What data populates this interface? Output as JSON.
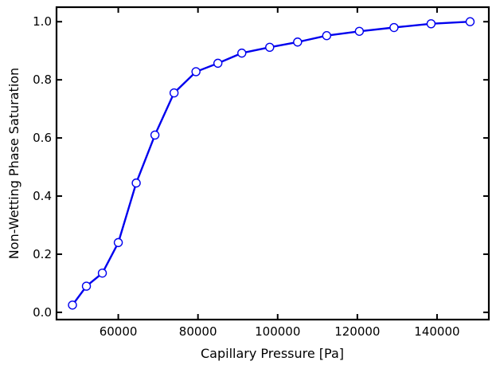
{
  "chart_data": {
    "type": "line",
    "title": "",
    "xlabel": "Capillary Pressure [Pa]",
    "ylabel": "Non-Wetting Phase Saturation",
    "xlim": [
      44500,
      153000
    ],
    "ylim": [
      -0.025,
      1.05
    ],
    "xticks": [
      60000,
      80000,
      100000,
      120000,
      140000
    ],
    "yticks": [
      0.0,
      0.2,
      0.4,
      0.6,
      0.8,
      1.0
    ],
    "xtick_labels": [
      "60000",
      "80000",
      "100000",
      "120000",
      "140000"
    ],
    "ytick_labels": [
      "0.0",
      "0.2",
      "0.4",
      "0.6",
      "0.8",
      "1.0"
    ],
    "grid": false,
    "series": [
      {
        "color": "#0000ee",
        "marker": "circle-open",
        "x": [
          48500,
          52000,
          56000,
          60000,
          64500,
          69200,
          74000,
          79500,
          85000,
          91000,
          98000,
          105000,
          112300,
          120500,
          129200,
          138500,
          148300
        ],
        "y": [
          0.025,
          0.09,
          0.135,
          0.24,
          0.445,
          0.61,
          0.755,
          0.828,
          0.857,
          0.892,
          0.912,
          0.93,
          0.952,
          0.967,
          0.98,
          0.993,
          1.0
        ]
      }
    ]
  }
}
